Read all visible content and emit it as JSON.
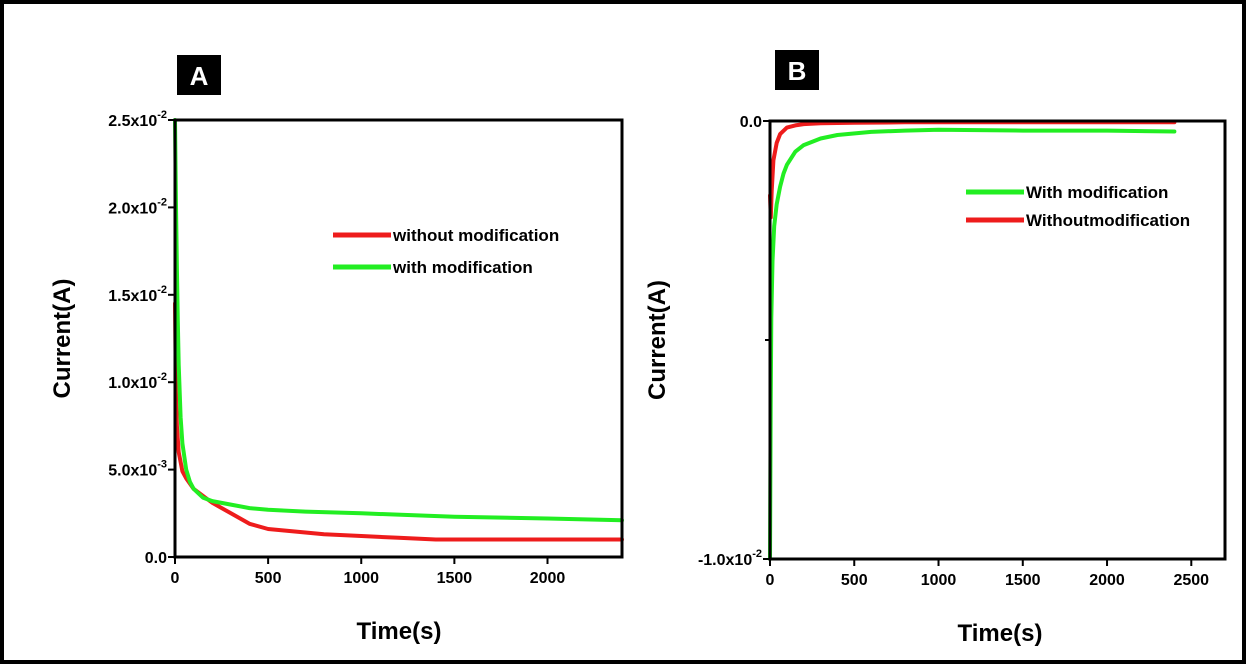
{
  "chart_data": [
    {
      "type": "line",
      "panel_label": "A",
      "xlabel": "Time(s)",
      "ylabel": "Current(A)",
      "xlim": [
        0,
        2400
      ],
      "ylim": [
        0,
        0.025
      ],
      "xticks": [
        0,
        500,
        1000,
        1500,
        2000
      ],
      "xtick_labels": [
        "0",
        "500",
        "1000",
        "1500",
        "2000"
      ],
      "yticks": [
        0,
        0.005,
        0.01,
        0.015,
        0.02,
        0.025
      ],
      "ytick_labels": [
        {
          "base": "0.0",
          "exp": ""
        },
        {
          "base": "5.0x10",
          "exp": "-3"
        },
        {
          "base": "1.0x10",
          "exp": "-2"
        },
        {
          "base": "1.5x10",
          "exp": "-2"
        },
        {
          "base": "2.0x10",
          "exp": "-2"
        },
        {
          "base": "2.5x10",
          "exp": "-2"
        }
      ],
      "legend_position": "top-right",
      "series": [
        {
          "name": "without modification",
          "color": "#ee1c1c",
          "x": [
            0,
            5,
            10,
            20,
            40,
            60,
            80,
            100,
            150,
            200,
            300,
            400,
            500,
            600,
            800,
            1000,
            1200,
            1400,
            1600,
            2000,
            2400
          ],
          "y": [
            0.0145,
            0.0095,
            0.0075,
            0.006,
            0.0049,
            0.0045,
            0.0042,
            0.0039,
            0.0035,
            0.0031,
            0.0025,
            0.0019,
            0.0016,
            0.0015,
            0.0013,
            0.0012,
            0.0011,
            0.001,
            0.001,
            0.001,
            0.001
          ]
        },
        {
          "name": "with modification",
          "color": "#22ee22",
          "x": [
            0,
            5,
            10,
            15,
            20,
            30,
            40,
            60,
            80,
            100,
            150,
            200,
            300,
            400,
            500,
            700,
            1000,
            1500,
            2000,
            2400
          ],
          "y": [
            0.025,
            0.0205,
            0.0165,
            0.0135,
            0.011,
            0.008,
            0.0065,
            0.005,
            0.0043,
            0.0039,
            0.0034,
            0.0032,
            0.003,
            0.0028,
            0.0027,
            0.0026,
            0.0025,
            0.0023,
            0.0022,
            0.0021
          ]
        }
      ]
    },
    {
      "type": "line",
      "panel_label": "B",
      "xlabel": "Time(s)",
      "ylabel": "Current(A)",
      "xlim": [
        0,
        2700
      ],
      "ylim": [
        -0.01,
        0
      ],
      "xticks": [
        0,
        500,
        1000,
        1500,
        2000,
        2500
      ],
      "xtick_labels": [
        "0",
        "500",
        "1000",
        "1500",
        "2000",
        "2500"
      ],
      "yticks": [
        -0.01,
        0
      ],
      "ytick_labels": [
        {
          "base": "-1.0x10",
          "exp": "-2"
        },
        {
          "base": "0.0",
          "exp": ""
        }
      ],
      "minor_yticks": [
        -0.005
      ],
      "legend_position": "top-right",
      "series": [
        {
          "name": "With modification",
          "color": "#22ee22",
          "x": [
            0,
            2,
            4,
            8,
            15,
            25,
            40,
            60,
            80,
            100,
            150,
            200,
            300,
            400,
            600,
            800,
            1000,
            1500,
            2000,
            2400
          ],
          "y": [
            -0.01,
            -0.0085,
            -0.0065,
            -0.0045,
            -0.0032,
            -0.0024,
            -0.0019,
            -0.0015,
            -0.0012,
            -0.001,
            -0.0007,
            -0.00055,
            -0.0004,
            -0.00032,
            -0.00025,
            -0.00022,
            -0.0002,
            -0.00022,
            -0.00022,
            -0.00024
          ]
        },
        {
          "name": "Withoutmodification",
          "color": "#ee1c1c",
          "x": [
            0,
            5,
            10,
            20,
            40,
            60,
            100,
            150,
            200,
            300,
            500,
            800,
            1200,
            1800,
            2400
          ],
          "y": [
            -0.0017,
            -0.0022,
            -0.0016,
            -0.0009,
            -0.0005,
            -0.0003,
            -0.00015,
            -0.0001,
            -7e-05,
            -5e-05,
            -4e-05,
            -3e-05,
            -3e-05,
            -3e-05,
            -3e-05
          ]
        }
      ]
    }
  ]
}
